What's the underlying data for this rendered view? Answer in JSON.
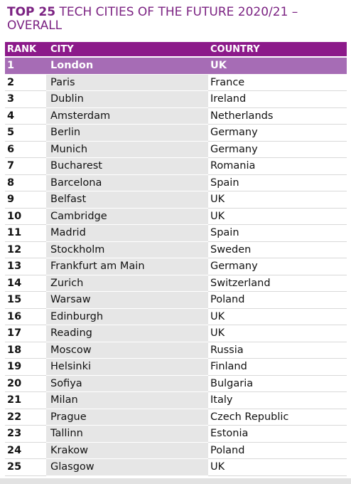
{
  "title": {
    "bold": "TOP 25",
    "rest": "TECH CITIES OF THE FUTURE 2020/21 – OVERALL"
  },
  "table": {
    "header": [
      "RANK",
      "CITY",
      "COUNTRY"
    ],
    "rows": [
      [
        "1",
        "London",
        "UK"
      ],
      [
        "2",
        "Paris",
        "France"
      ],
      [
        "3",
        "Dublin",
        "Ireland"
      ],
      [
        "4",
        "Amsterdam",
        "Netherlands"
      ],
      [
        "5",
        "Berlin",
        "Germany"
      ],
      [
        "6",
        "Munich",
        "Germany"
      ],
      [
        "7",
        "Bucharest",
        "Romania"
      ],
      [
        "8",
        "Barcelona",
        "Spain"
      ],
      [
        "9",
        "Belfast",
        "UK"
      ],
      [
        "10",
        "Cambridge",
        "UK"
      ],
      [
        "11",
        "Madrid",
        "Spain"
      ],
      [
        "12",
        "Stockholm",
        "Sweden"
      ],
      [
        "13",
        "Frankfurt am Main",
        "Germany"
      ],
      [
        "14",
        "Zurich",
        "Switzerland"
      ],
      [
        "15",
        "Warsaw",
        "Poland"
      ],
      [
        "16",
        "Edinburgh",
        "UK"
      ],
      [
        "17",
        "Reading",
        "UK"
      ],
      [
        "18",
        "Moscow",
        "Russia"
      ],
      [
        "19",
        "Helsinki",
        "Finland"
      ],
      [
        "20",
        "Sofiya",
        "Bulgaria"
      ],
      [
        "21",
        "Milan",
        "Italy"
      ],
      [
        "22",
        "Prague",
        "Czech Republic"
      ],
      [
        "23",
        "Tallinn",
        "Estonia"
      ],
      [
        "24",
        "Krakow",
        "Poland"
      ],
      [
        "25",
        "Glasgow",
        "UK"
      ]
    ]
  }
}
